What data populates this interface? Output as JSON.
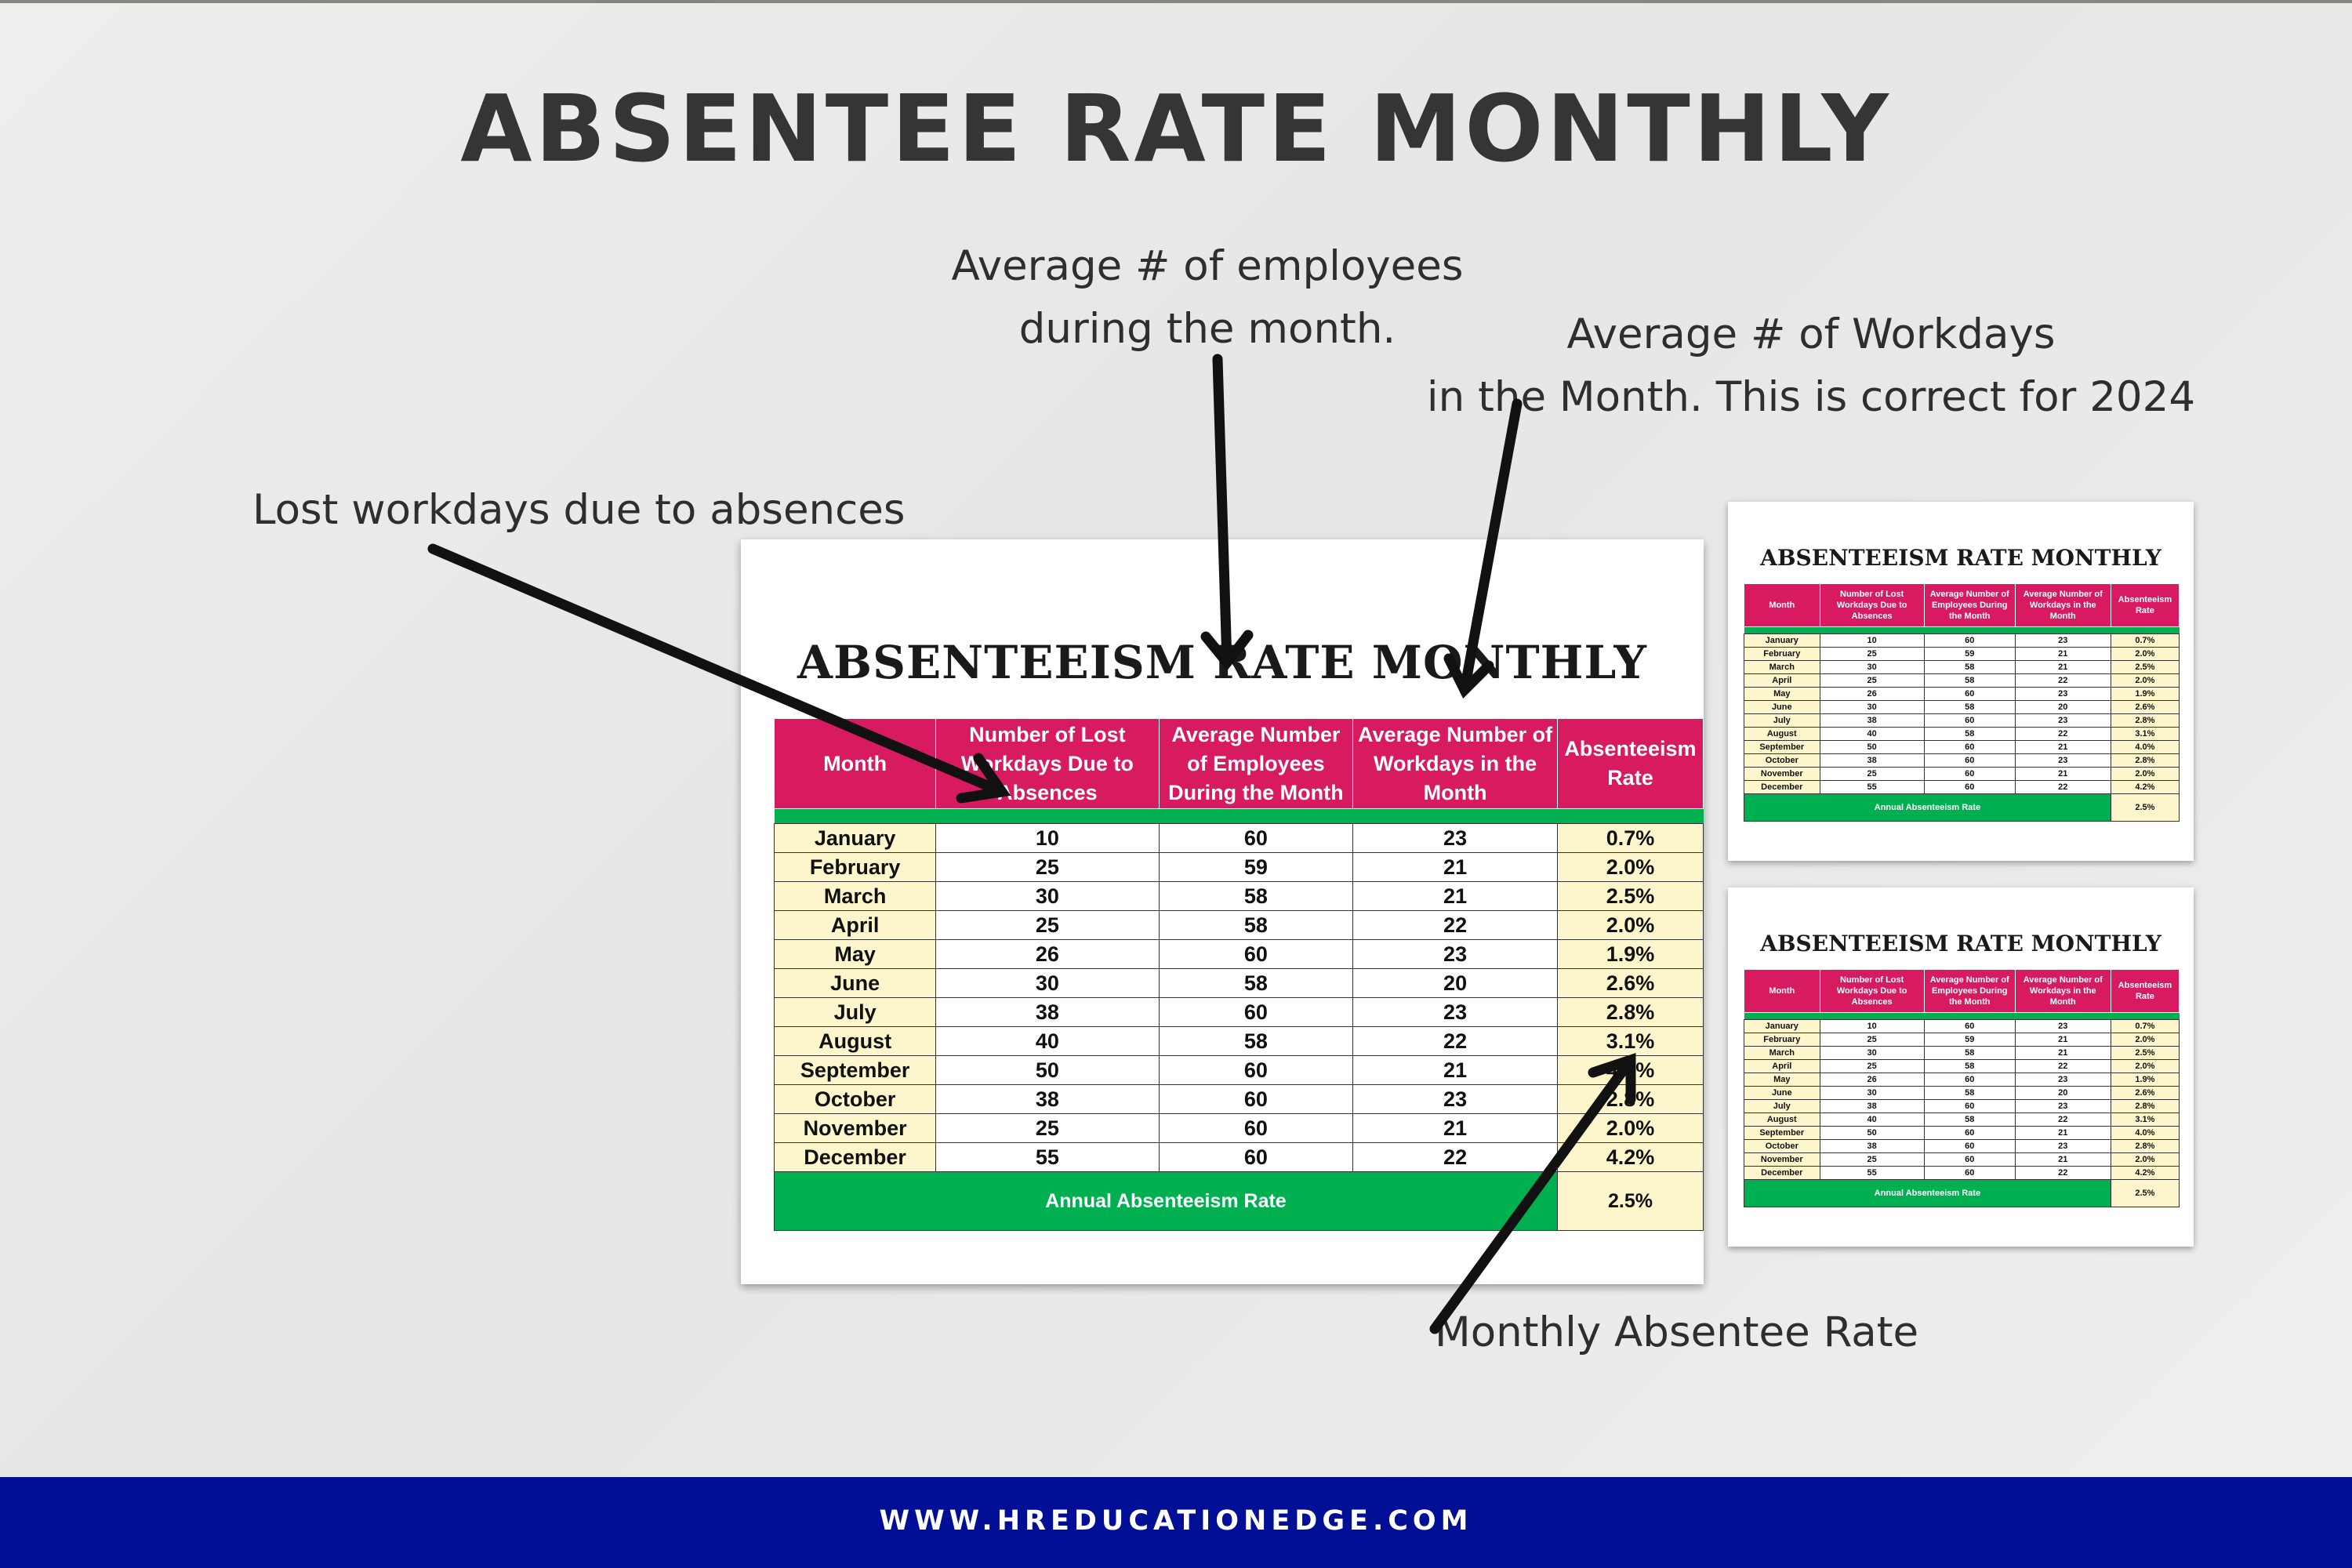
{
  "title": "ABSENTEE RATE MONTHLY",
  "annotations": {
    "employees_line1": "Average # of employees",
    "employees_line2": "during the month.",
    "workdays_line1": "Average # of Workdays",
    "workdays_line2": "in the Month. This is correct for 2024",
    "lost": "Lost workdays due to absences",
    "rate": "Monthly Absentee Rate"
  },
  "sheet": {
    "title": "ABSENTEEISM RATE  MONTHLY",
    "headers": [
      "Month",
      "Number of Lost Workdays Due to Absences",
      "Average Number of Employees During the Month",
      "Average Number of Workdays in the Month",
      "Absenteeism Rate"
    ],
    "rows": [
      [
        "January",
        "10",
        "60",
        "23",
        "0.7%"
      ],
      [
        "February",
        "25",
        "59",
        "21",
        "2.0%"
      ],
      [
        "March",
        "30",
        "58",
        "21",
        "2.5%"
      ],
      [
        "April",
        "25",
        "58",
        "22",
        "2.0%"
      ],
      [
        "May",
        "26",
        "60",
        "23",
        "1.9%"
      ],
      [
        "June",
        "30",
        "58",
        "20",
        "2.6%"
      ],
      [
        "July",
        "38",
        "60",
        "23",
        "2.8%"
      ],
      [
        "August",
        "40",
        "58",
        "22",
        "3.1%"
      ],
      [
        "September",
        "50",
        "60",
        "21",
        "4.0%"
      ],
      [
        "October",
        "38",
        "60",
        "23",
        "2.8%"
      ],
      [
        "November",
        "25",
        "60",
        "21",
        "2.0%"
      ],
      [
        "December",
        "55",
        "60",
        "22",
        "4.2%"
      ]
    ],
    "annual_label": "Annual Absenteeism Rate",
    "annual_value": "2.5%"
  },
  "footer": {
    "url": "WWW.HREDUCATIONEDGE.COM"
  },
  "colors": {
    "header": "#d81b60",
    "band": "#00b050",
    "month_fill": "#fdf6cc",
    "footer_bar": "#000f96",
    "title_text": "#353535"
  }
}
